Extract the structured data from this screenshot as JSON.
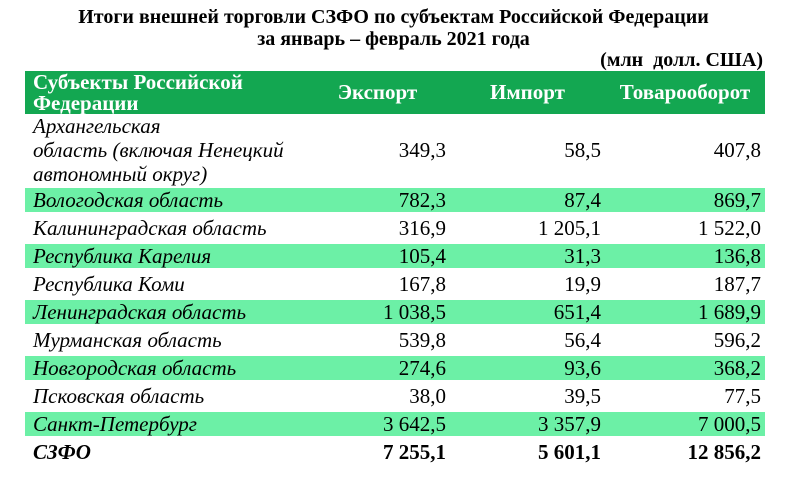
{
  "colors": {
    "header_bg": "#13a751",
    "stripe_bg": "#6cf0a6",
    "header_text": "#ffffff",
    "body_text": "#000000"
  },
  "title": {
    "line1": "Итоги внешней торговли СЗФО по субъектам Российской Федерации",
    "line2": "за январь – февраль 2021 года"
  },
  "units_label": "(млн  долл. США)",
  "table": {
    "columns": [
      "Субъекты  Российской\nФедерации",
      "Экспорт",
      "Импорт",
      "Товарооборот"
    ],
    "rows": [
      {
        "name": "Архангельская\nобласть (включая Ненецкий\nавтономный округ)",
        "export": "349,3",
        "import": "58,5",
        "turnover": "407,8"
      },
      {
        "name": "Вологодская область",
        "export": "782,3",
        "import": "87,4",
        "turnover": "869,7"
      },
      {
        "name": "Калининградская область",
        "export": "316,9",
        "import": "1 205,1",
        "turnover": "1 522,0"
      },
      {
        "name": "Республика Карелия",
        "export": "105,4",
        "import": "31,3",
        "turnover": "136,8"
      },
      {
        "name": "Республика Коми",
        "export": "167,8",
        "import": "19,9",
        "turnover": "187,7"
      },
      {
        "name": "Ленинградская область",
        "export": "1 038,5",
        "import": "651,4",
        "turnover": "1 689,9"
      },
      {
        "name": "Мурманская область",
        "export": "539,8",
        "import": "56,4",
        "turnover": "596,2"
      },
      {
        "name": "Новгородская область",
        "export": "274,6",
        "import": "93,6",
        "turnover": "368,2"
      },
      {
        "name": "Псковская область",
        "export": "38,0",
        "import": "39,5",
        "turnover": "77,5"
      },
      {
        "name": "Санкт-Петербург",
        "export": "3 642,5",
        "import": "3 357,9",
        "turnover": "7 000,5"
      }
    ],
    "total_row": {
      "name": "СЗФО",
      "export": "7 255,1",
      "import": "5 601,1",
      "turnover": "12 856,2"
    }
  }
}
